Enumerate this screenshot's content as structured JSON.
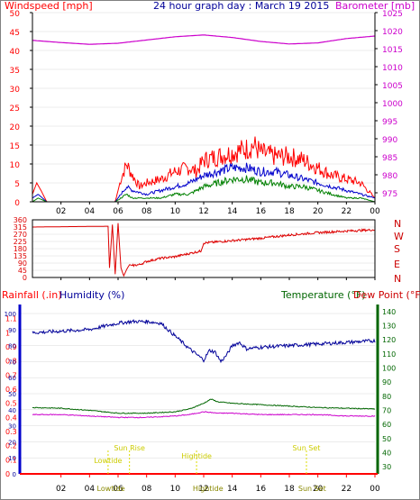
{
  "colors": {
    "wind": "#ff0000",
    "wind_avg": "#0000cc",
    "wind_gust_base": "#008000",
    "baro": "#cc00cc",
    "direction": "#dd0000",
    "humidity": "#000099",
    "temperature": "#006600",
    "dewpoint": "#cc00cc",
    "rain": "#ff0000",
    "tide": "#dddd00",
    "axis": "#000000",
    "grid": "#d8d8d8",
    "left_axis_humidity": "#0000cc"
  },
  "header": {
    "wind_label": "Windspeed [mph]",
    "title": "24 hour graph day : March 19 2015",
    "baro_label": "Barometer [mb]"
  },
  "panel3_labels": {
    "rain": "Rainfall (.in)",
    "humidity": "Humidity (%)",
    "temperature": "Temperature (°F)",
    "dewpoint": "Dew Point (°F)"
  },
  "compass": [
    "N",
    "W",
    "S",
    "E",
    "N"
  ],
  "tide_events": [
    {
      "label": "Sun Rise",
      "hour": 6.8
    },
    {
      "label": "Lowtide",
      "hour": 5.3
    },
    {
      "label": "Hightide",
      "hour": 11.5
    },
    {
      "label": "Sun Set",
      "hour": 19.2
    }
  ],
  "bottom_event_labels": [
    {
      "label": "Lowtide",
      "hour": 5.5
    },
    {
      "label": "Hightide",
      "hour": 12.3
    },
    {
      "label": "Sun Set",
      "hour": 19.6
    }
  ],
  "chart_data": [
    {
      "type": "line",
      "name": "wind-barometer",
      "x_ticks": [
        "02",
        "04",
        "06",
        "08",
        "10",
        "12",
        "14",
        "16",
        "18",
        "20",
        "22",
        "00"
      ],
      "y_left_ticks": [
        "0",
        "5",
        "10",
        "15",
        "20",
        "25",
        "30",
        "35",
        "40",
        "45",
        "50"
      ],
      "y_right_ticks": [
        "975",
        "980",
        "985",
        "990",
        "995",
        "1000",
        "1005",
        "1010",
        "1015",
        "1020",
        "1025"
      ],
      "ylim_left": [
        0,
        50
      ],
      "ylim_right": [
        972.5,
        1025
      ],
      "xlim_hours": [
        0,
        24
      ],
      "series": [
        {
          "name": "Windspeed gust",
          "x": [
            0,
            0.3,
            0.6,
            1,
            5.8,
            6.2,
            6.6,
            7,
            7.5,
            8,
            9,
            10,
            11,
            11.5,
            12,
            13,
            14,
            15,
            15.5,
            16,
            17,
            18,
            19,
            20,
            21,
            22,
            23,
            23.5,
            24
          ],
          "y": [
            2,
            5,
            3,
            0,
            0,
            6,
            10,
            7,
            4,
            5,
            6,
            8,
            9,
            8,
            11,
            12,
            13,
            14,
            15,
            13,
            12,
            12,
            11,
            9,
            7,
            6,
            5,
            3,
            1
          ]
        },
        {
          "name": "Windspeed average",
          "x": [
            0,
            0.4,
            1,
            5.8,
            6.2,
            6.6,
            7,
            8,
            9,
            10,
            11,
            12,
            13,
            14,
            15,
            16,
            17,
            18,
            19,
            20,
            21,
            22,
            23,
            24
          ],
          "y": [
            1,
            2,
            0,
            0,
            2,
            4,
            3,
            2,
            3,
            4,
            5,
            7,
            8,
            9,
            9,
            8,
            8,
            7,
            6,
            5,
            4,
            3,
            2,
            1
          ]
        },
        {
          "name": "Windspeed",
          "x": [
            0,
            0.4,
            1,
            5.8,
            6.2,
            6.6,
            7,
            8,
            9,
            10,
            11,
            12,
            13,
            14,
            15,
            16,
            17,
            18,
            19,
            20,
            21,
            22,
            23,
            24
          ],
          "y": [
            0,
            1,
            0,
            0,
            1,
            2,
            1,
            1,
            1,
            2,
            2,
            4,
            5,
            6,
            6,
            5,
            5,
            4,
            4,
            3,
            2,
            1,
            1,
            0
          ]
        },
        {
          "name": "Barometer",
          "x": [
            0,
            2,
            4,
            6,
            8,
            10,
            12,
            14,
            16,
            18,
            20,
            22,
            24
          ],
          "y": [
            1017.3,
            1016.7,
            1016.2,
            1016.5,
            1017.4,
            1018.3,
            1018.8,
            1018.1,
            1017.0,
            1016.3,
            1016.6,
            1017.8,
            1018.5
          ]
        }
      ]
    },
    {
      "type": "line",
      "name": "wind-direction",
      "y_ticks": [
        "0",
        "45",
        "90",
        "135",
        "180",
        "225",
        "270",
        "315",
        "360"
      ],
      "ylim": [
        0,
        360
      ],
      "series": [
        {
          "name": "Wind direction",
          "x": [
            0,
            3,
            5.3,
            5.4,
            5.6,
            5.8,
            6,
            6.2,
            6.4,
            6.6,
            6.8,
            7,
            7.5,
            8,
            9,
            10,
            11,
            11.8,
            12,
            14,
            16,
            18,
            20,
            22,
            24
          ],
          "y": [
            315,
            318,
            320,
            60,
            330,
            20,
            340,
            60,
            10,
            50,
            80,
            75,
            80,
            100,
            120,
            130,
            150,
            165,
            215,
            230,
            245,
            265,
            280,
            290,
            298
          ]
        }
      ]
    },
    {
      "type": "line",
      "name": "humidity-temperature",
      "y_left_ticks": [
        "0",
        "0.1",
        "0.2",
        "0.3",
        "0.4",
        "0.5",
        "0.6",
        "0.7",
        "0.8",
        "0.9",
        "1",
        "1.1"
      ],
      "y_left_humidity_ticks": [
        "0",
        "10",
        "20",
        "30",
        "40",
        "50",
        "60",
        "70",
        "80",
        "90",
        "100"
      ],
      "y_right_ticks": [
        "30",
        "40",
        "50",
        "60",
        "70",
        "80",
        "90",
        "100",
        "110",
        "120",
        "130",
        "140"
      ],
      "ylim_humidity": [
        0,
        100
      ],
      "ylim_temperature": [
        25,
        145
      ],
      "series": [
        {
          "name": "Humidity",
          "x": [
            0,
            2,
            4,
            5,
            6,
            7,
            8,
            9,
            10,
            11,
            12,
            12.4,
            12.8,
            13.2,
            13.6,
            14,
            14.5,
            15,
            16,
            18,
            20,
            22,
            24
          ],
          "y": [
            88,
            89,
            90,
            92,
            94,
            95,
            95,
            94,
            86,
            78,
            71,
            77,
            76,
            70,
            74,
            80,
            82,
            78,
            79,
            80,
            81,
            82,
            83
          ]
        },
        {
          "name": "Temperature",
          "x": [
            0,
            2,
            4,
            6,
            8,
            10,
            11,
            12,
            12.5,
            13,
            14,
            16,
            18,
            20,
            22,
            24
          ],
          "y": [
            72,
            71.5,
            70,
            68,
            68,
            69,
            71,
            75,
            78,
            76,
            75,
            74,
            73,
            72,
            71.5,
            71
          ]
        },
        {
          "name": "Dew Point",
          "x": [
            0,
            2,
            4,
            6,
            8,
            10,
            11,
            12,
            13,
            14,
            16,
            18,
            20,
            22,
            24
          ],
          "y": [
            67,
            67,
            66,
            65,
            65,
            66,
            67,
            69,
            68,
            68,
            67,
            67,
            67,
            66,
            66
          ]
        },
        {
          "name": "Rainfall",
          "x": [
            0,
            24
          ],
          "y": [
            0,
            0
          ]
        }
      ]
    }
  ]
}
